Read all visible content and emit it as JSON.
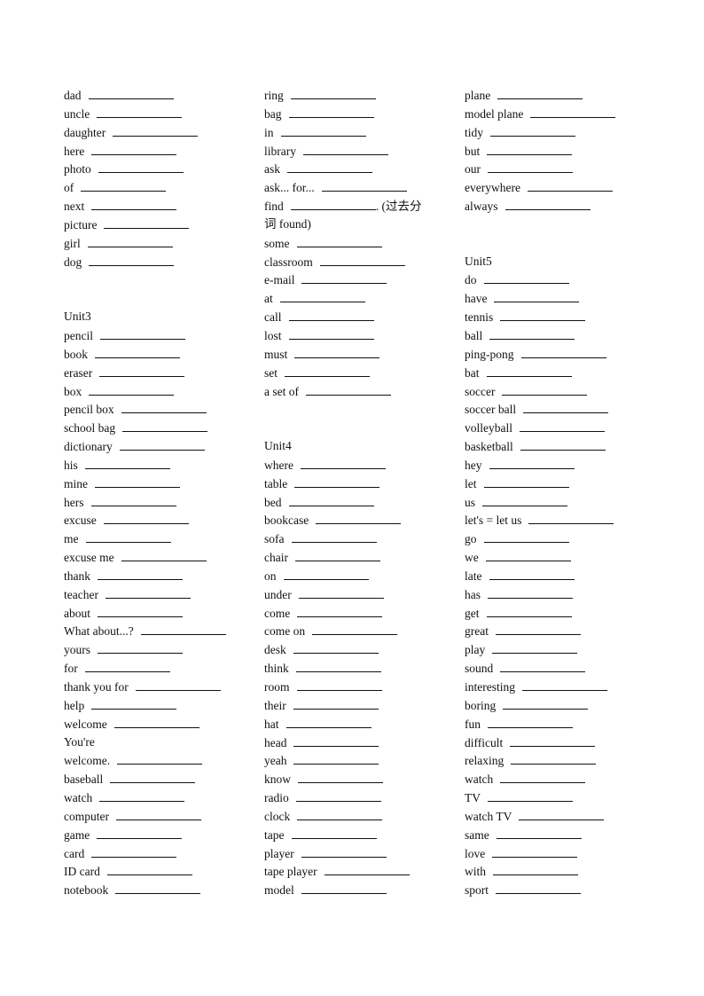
{
  "columns": [
    [
      {
        "word": "dad",
        "blank": true
      },
      {
        "word": "uncle",
        "blank": true
      },
      {
        "word": "daughter",
        "blank": true
      },
      {
        "word": "here",
        "blank": true
      },
      {
        "word": "photo",
        "blank": true
      },
      {
        "word": "of",
        "blank": true
      },
      {
        "word": "next",
        "blank": true
      },
      {
        "word": "picture",
        "blank": true
      },
      {
        "word": "girl",
        "blank": true
      },
      {
        "word": "dog",
        "blank": true
      },
      {},
      {},
      {
        "heading": "Unit3"
      },
      {
        "word": "pencil",
        "blank": true
      },
      {
        "word": "book",
        "blank": true
      },
      {
        "word": "eraser",
        "blank": true
      },
      {
        "word": "box",
        "blank": true
      },
      {
        "word": "pencil  box",
        "blank": true
      },
      {
        "word": "school  bag",
        "blank": true
      },
      {
        "word": "dictionary",
        "blank": true
      },
      {
        "word": "his",
        "blank": true
      },
      {
        "word": "mine",
        "blank": true
      },
      {
        "word": "hers",
        "blank": true
      },
      {
        "word": "excuse",
        "blank": true
      },
      {
        "word": "me",
        "blank": true
      },
      {
        "word": "excuse  me",
        "blank": true
      },
      {
        "word": "thank",
        "blank": true
      },
      {
        "word": "teacher",
        "blank": true
      },
      {
        "word": "about",
        "blank": true
      },
      {
        "word": "What  about...?",
        "blank": true
      },
      {
        "word": "yours",
        "blank": true
      },
      {
        "word": "for",
        "blank": true
      },
      {
        "word": "thank  you  for",
        "blank": true
      },
      {
        "word": "help",
        "blank": true
      },
      {
        "word": "welcome",
        "blank": true
      },
      {
        "word": "You're"
      },
      {
        "word": "welcome.",
        "blank": true
      },
      {
        "word": "baseball",
        "blank": true
      },
      {
        "word": "watch",
        "blank": true
      },
      {
        "word": "computer",
        "blank": true
      },
      {
        "word": "game",
        "blank": true
      },
      {
        "word": "card",
        "blank": true
      },
      {
        "word": "ID  card",
        "blank": true
      },
      {
        "word": "notebook",
        "blank": true
      }
    ],
    [
      {
        "word": "ring",
        "blank": true
      },
      {
        "word": "bag",
        "blank": true
      },
      {
        "word": "in",
        "blank": true
      },
      {
        "word": "library",
        "blank": true
      },
      {
        "word": "ask",
        "blank": true
      },
      {
        "word": "ask...  for...",
        "blank": true
      },
      {
        "word": "find",
        "blank": true,
        "suffix": ". (过去分"
      },
      {
        "word": "词  found)"
      },
      {
        "word": "some",
        "blank": true
      },
      {
        "word": "classroom",
        "blank": true
      },
      {
        "word": "e-mail",
        "blank": true
      },
      {
        "word": "at",
        "blank": true
      },
      {
        "word": "call",
        "blank": true
      },
      {
        "word": "lost",
        "blank": true
      },
      {
        "word": "must",
        "blank": true
      },
      {
        "word": "set",
        "blank": true
      },
      {
        "word": "a  set  of",
        "blank": true
      },
      {},
      {},
      {
        "heading": "Unit4"
      },
      {
        "word": "where",
        "blank": true
      },
      {
        "word": "table",
        "blank": true
      },
      {
        "word": "bed",
        "blank": true
      },
      {
        "word": "bookcase",
        "blank": true
      },
      {
        "word": "sofa",
        "blank": true
      },
      {
        "word": "chair",
        "blank": true
      },
      {
        "word": "on",
        "blank": true
      },
      {
        "word": "under",
        "blank": true
      },
      {
        "word": "come",
        "blank": true
      },
      {
        "word": "come  on",
        "blank": true
      },
      {
        "word": "desk",
        "blank": true
      },
      {
        "word": "think",
        "blank": true
      },
      {
        "word": "room",
        "blank": true
      },
      {
        "word": "their",
        "blank": true
      },
      {
        "word": "hat",
        "blank": true
      },
      {
        "word": "head",
        "blank": true
      },
      {
        "word": "yeah",
        "blank": true
      },
      {
        "word": "know",
        "blank": true
      },
      {
        "word": "radio",
        "blank": true
      },
      {
        "word": "clock",
        "blank": true
      },
      {
        "word": "tape",
        "blank": true
      },
      {
        "word": "player",
        "blank": true
      },
      {
        "word": "tape  player",
        "blank": true
      },
      {
        "word": "model",
        "blank": true
      }
    ],
    [
      {
        "word": "plane",
        "blank": true
      },
      {
        "word": "model  plane",
        "blank": true
      },
      {
        "word": "tidy",
        "blank": true
      },
      {
        "word": "but",
        "blank": true
      },
      {
        "word": "our",
        "blank": true
      },
      {
        "word": "everywhere",
        "blank": true
      },
      {
        "word": "always",
        "blank": true
      },
      {},
      {},
      {
        "heading": "Unit5"
      },
      {
        "word": "do",
        "blank": true
      },
      {
        "word": "have",
        "blank": true
      },
      {
        "word": "tennis",
        "blank": true
      },
      {
        "word": "ball",
        "blank": true
      },
      {
        "word": "ping-pong",
        "blank": true
      },
      {
        "word": "bat",
        "blank": true
      },
      {
        "word": "soccer",
        "blank": true
      },
      {
        "word": "soccer  ball",
        "blank": true
      },
      {
        "word": "volleyball",
        "blank": true
      },
      {
        "word": "basketball",
        "blank": true
      },
      {
        "word": "hey",
        "blank": true
      },
      {
        "word": "let",
        "blank": true
      },
      {
        "word": "us",
        "blank": true
      },
      {
        "word": "let's  = let  us",
        "blank": true
      },
      {
        "word": "go",
        "blank": true
      },
      {
        "word": "we",
        "blank": true
      },
      {
        "word": "late",
        "blank": true
      },
      {
        "word": "has",
        "blank": true
      },
      {
        "word": "get",
        "blank": true
      },
      {
        "word": "great",
        "blank": true
      },
      {
        "word": "play",
        "blank": true
      },
      {
        "word": "sound",
        "blank": true
      },
      {
        "word": "interesting",
        "blank": true
      },
      {
        "word": "boring",
        "blank": true
      },
      {
        "word": "fun",
        "blank": true
      },
      {
        "word": "difficult",
        "blank": true
      },
      {
        "word": "relaxing",
        "blank": true
      },
      {
        "word": "watch",
        "blank": true
      },
      {
        "word": "TV",
        "blank": true
      },
      {
        "word": "watch  TV",
        "blank": true
      },
      {
        "word": "same",
        "blank": true
      },
      {
        "word": "love",
        "blank": true
      },
      {
        "word": "with",
        "blank": true
      },
      {
        "word": "sport",
        "blank": true
      }
    ]
  ]
}
